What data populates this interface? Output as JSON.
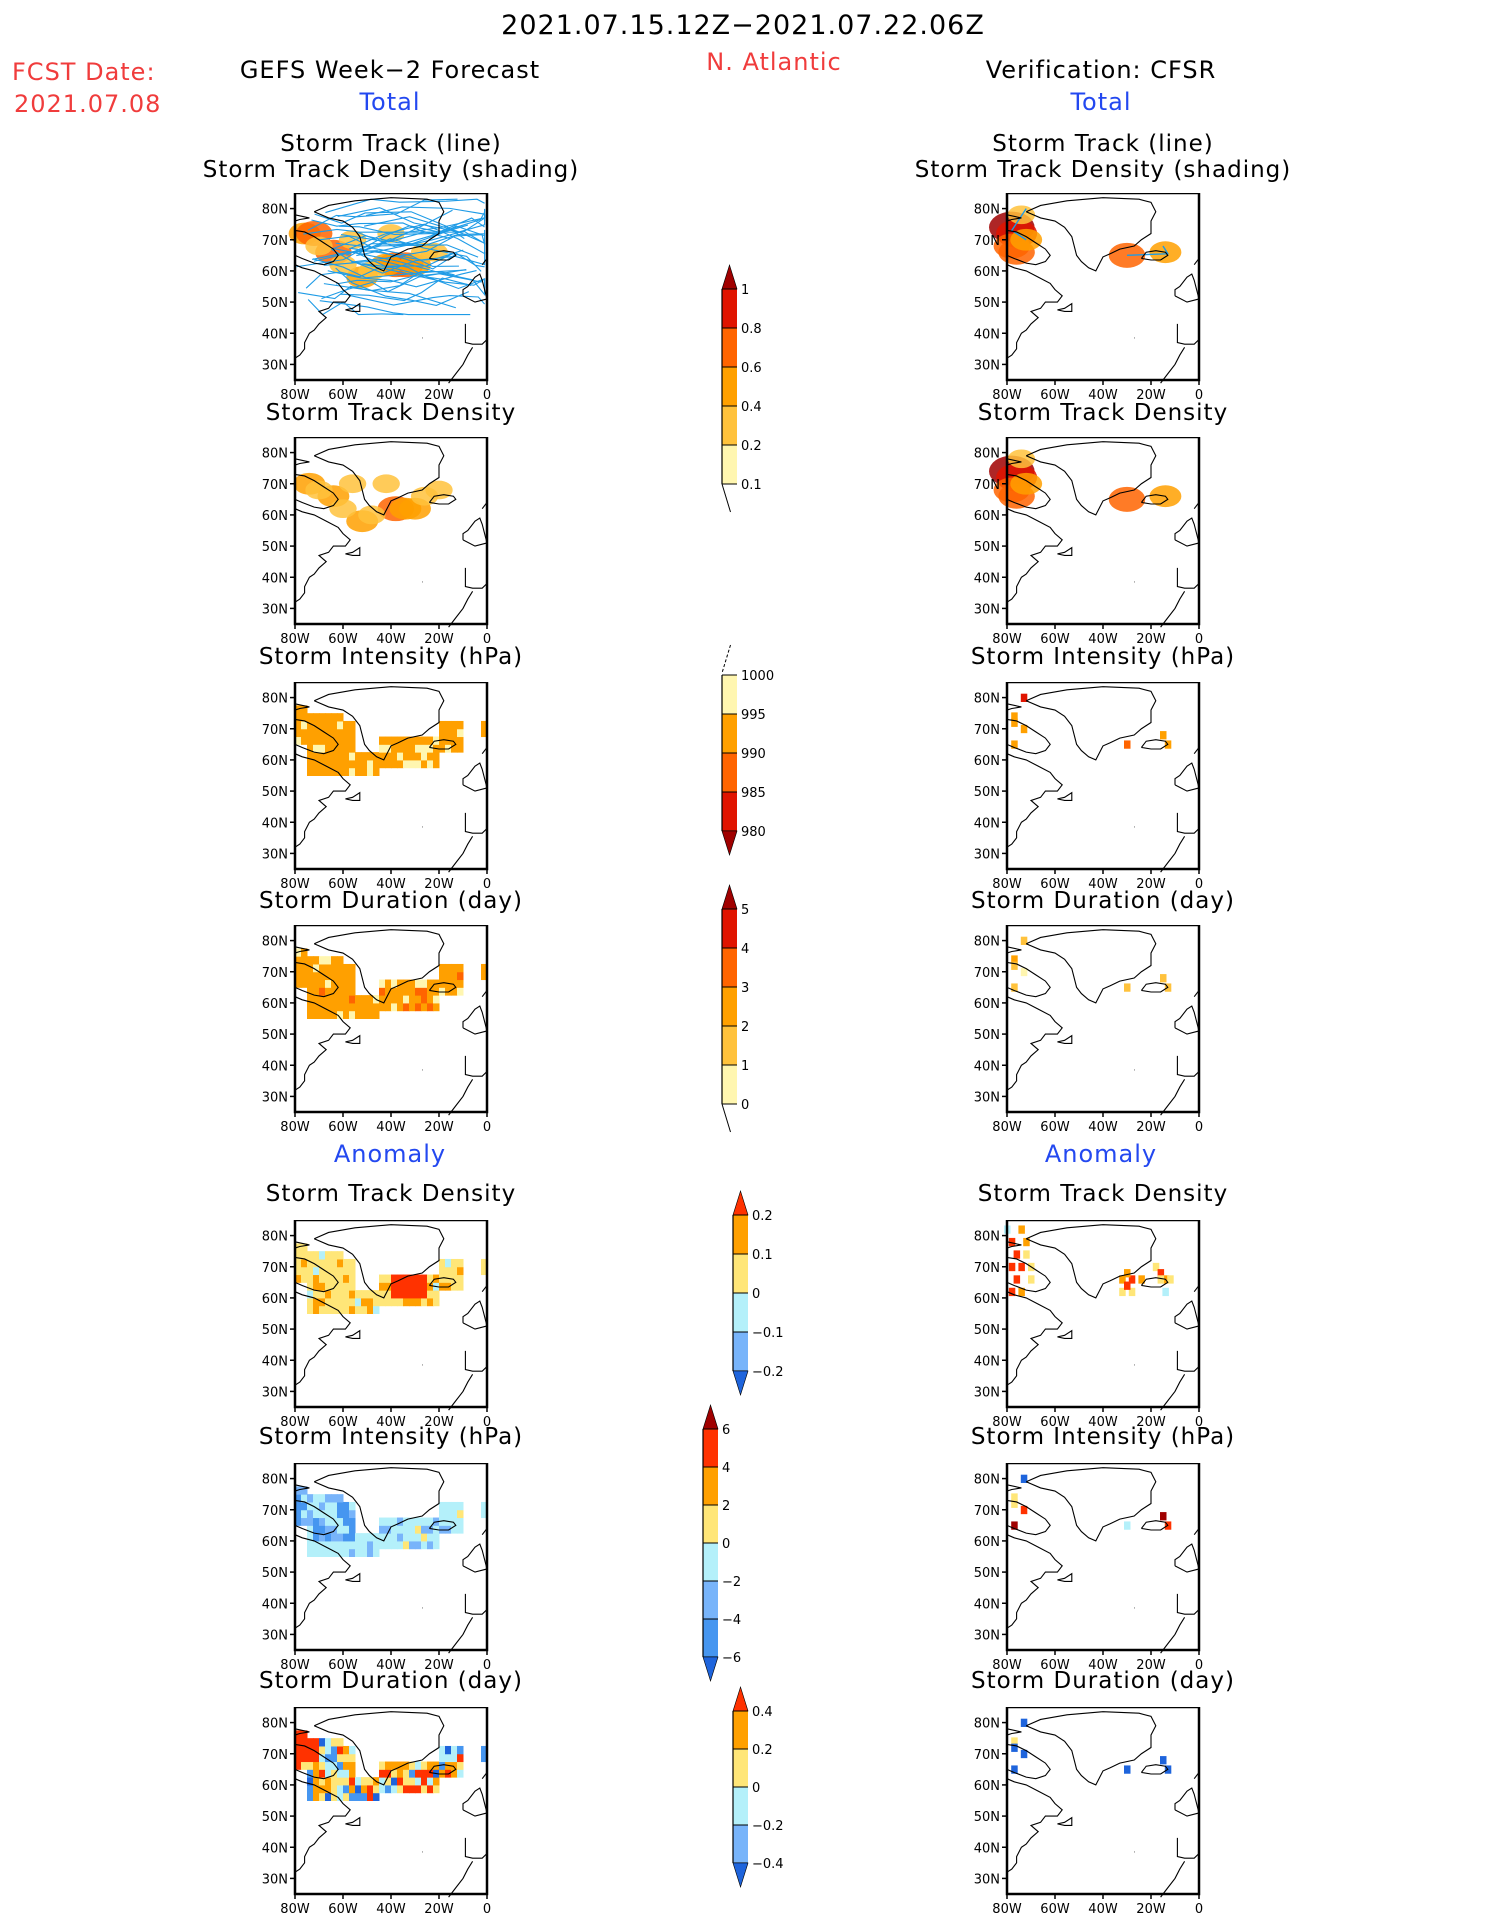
{
  "header": {
    "period": "2021.07.15.12Z−2021.07.22.06Z",
    "region": "N. Atlantic",
    "fcst_label": "FCST Date:",
    "fcst_date": "2021.07.08",
    "left_title": "GEFS Week−2 Forecast",
    "right_title": "Verification: CFSR",
    "total_label": "Total",
    "anomaly_label": "Anomaly"
  },
  "colors": {
    "seq": [
      "#fff6b0",
      "#ffc23c",
      "#ffa000",
      "#ff6400",
      "#e01400",
      "#a00000"
    ],
    "div": [
      "#1e64dc",
      "#4696f0",
      "#78b4fa",
      "#b4f0fa",
      "#ffe678",
      "#ffa000",
      "#ff3200",
      "#a00000"
    ],
    "track": "#1e9be6",
    "title_red": "#f03c3c",
    "title_blue": "#2348f0"
  },
  "axes": {
    "lat_ticks": [
      "80N",
      "70N",
      "60N",
      "50N",
      "40N",
      "30N"
    ],
    "lon_ticks": [
      "80W",
      "60W",
      "40W",
      "20W",
      "0"
    ],
    "lat_range": [
      25,
      85
    ],
    "lon_range": [
      -80,
      0
    ]
  },
  "chart_data": [
    {
      "type": "heatmap",
      "panel": "forecast-total-track",
      "title_lines": [
        "Storm Track (line)",
        "Storm Track Density (shading)"
      ],
      "scale": "density",
      "cells": [
        [
          -76,
          72,
          2
        ],
        [
          -72,
          72,
          3
        ],
        [
          -64,
          66,
          3
        ],
        [
          -38,
          62,
          3
        ],
        [
          -34,
          62,
          3
        ],
        [
          -30,
          62,
          2
        ],
        [
          -42,
          62,
          2
        ],
        [
          -52,
          58,
          2
        ],
        [
          -70,
          68,
          1
        ],
        [
          -60,
          62,
          1
        ],
        [
          -48,
          60,
          1
        ],
        [
          -26,
          66,
          1
        ],
        [
          -22,
          66,
          1
        ],
        [
          -56,
          70,
          1
        ],
        [
          -40,
          72,
          1
        ]
      ],
      "tracks": true
    },
    {
      "type": "heatmap",
      "panel": "verification-total-track",
      "title_lines": [
        "Storm Track (line)",
        "Storm Track Density (shading)"
      ],
      "scale": "density",
      "cells": [
        [
          -78,
          74,
          5
        ],
        [
          -76,
          72,
          4
        ],
        [
          -78,
          68,
          3
        ],
        [
          -76,
          66,
          3
        ],
        [
          -74,
          78,
          1
        ],
        [
          -72,
          70,
          2
        ],
        [
          -30,
          65,
          3
        ],
        [
          -14,
          66,
          2
        ]
      ],
      "tracks": false
    },
    {
      "type": "heatmap",
      "panel": "forecast-track-density",
      "title_lines": [
        "Storm Track Density"
      ],
      "scale": "density",
      "cells": [
        [
          -74,
          70,
          2
        ],
        [
          -64,
          66,
          2
        ],
        [
          -38,
          62,
          3
        ],
        [
          -34,
          62,
          2
        ],
        [
          -30,
          62,
          2
        ],
        [
          -52,
          58,
          2
        ],
        [
          -70,
          68,
          1
        ],
        [
          -60,
          62,
          1
        ],
        [
          -48,
          60,
          1
        ],
        [
          -26,
          66,
          1
        ],
        [
          -20,
          68,
          1
        ],
        [
          -56,
          70,
          1
        ],
        [
          -42,
          70,
          1
        ]
      ]
    },
    {
      "type": "heatmap",
      "panel": "verification-track-density",
      "title_lines": [
        "Storm Track Density"
      ],
      "scale": "density",
      "cells": [
        [
          -78,
          74,
          5
        ],
        [
          -76,
          72,
          4
        ],
        [
          -78,
          68,
          3
        ],
        [
          -76,
          66,
          3
        ],
        [
          -74,
          78,
          1
        ],
        [
          -72,
          70,
          2
        ],
        [
          -30,
          65,
          3
        ],
        [
          -14,
          66,
          2
        ]
      ]
    },
    {
      "type": "heatmap",
      "panel": "forecast-intensity",
      "title_lines": [
        "Storm Intensity (hPa)"
      ],
      "scale": "intensity",
      "cells": "forecast_mask_intensity"
    },
    {
      "type": "heatmap",
      "panel": "verification-intensity",
      "title_lines": [
        "Storm Intensity (hPa)"
      ],
      "scale": "intensity",
      "cells": [
        [
          -73,
          80,
          3
        ],
        [
          -77,
          74,
          1
        ],
        [
          -77,
          72,
          1
        ],
        [
          -73,
          70,
          1
        ],
        [
          -77,
          65,
          1
        ],
        [
          -30,
          65,
          2
        ],
        [
          -15,
          68,
          1
        ],
        [
          -13,
          65,
          1
        ]
      ]
    },
    {
      "type": "heatmap",
      "panel": "forecast-duration",
      "title_lines": [
        "Storm Duration (day)"
      ],
      "scale": "duration",
      "cells": "forecast_mask_duration"
    },
    {
      "type": "heatmap",
      "panel": "verification-duration",
      "title_lines": [
        "Storm Duration (day)"
      ],
      "scale": "duration",
      "cells": [
        [
          -73,
          80,
          1
        ],
        [
          -77,
          74,
          2
        ],
        [
          -77,
          72,
          1
        ],
        [
          -73,
          70,
          0
        ],
        [
          -77,
          65,
          1
        ],
        [
          -30,
          65,
          1
        ],
        [
          -15,
          68,
          1
        ],
        [
          -13,
          65,
          1
        ]
      ]
    },
    {
      "type": "heatmap",
      "panel": "forecast-anom-density",
      "title_lines": [
        "Storm Track Density"
      ],
      "scale": "anom_density",
      "cells": "forecast_mask_anom_density"
    },
    {
      "type": "heatmap",
      "panel": "verification-anom-density",
      "title_lines": [
        "Storm Track Density"
      ],
      "scale": "anom_density",
      "cells": [
        [
          -78,
          78,
          6
        ],
        [
          -76,
          74,
          6
        ],
        [
          -78,
          70,
          6
        ],
        [
          -74,
          70,
          6
        ],
        [
          -76,
          66,
          6
        ],
        [
          -78,
          62,
          6
        ],
        [
          -74,
          82,
          5
        ],
        [
          -72,
          78,
          5
        ],
        [
          -72,
          74,
          4
        ],
        [
          -70,
          70,
          4
        ],
        [
          -70,
          66,
          4
        ],
        [
          -74,
          62,
          5
        ],
        [
          -32,
          66,
          5
        ],
        [
          -28,
          66,
          6
        ],
        [
          -32,
          62,
          4
        ],
        [
          -28,
          62,
          4
        ],
        [
          -24,
          66,
          5
        ],
        [
          -30,
          68,
          5
        ],
        [
          -30,
          64,
          6
        ],
        [
          -18,
          70,
          4
        ],
        [
          -16,
          68,
          6
        ],
        [
          -14,
          66,
          5
        ],
        [
          -12,
          66,
          4
        ],
        [
          -16,
          66,
          4
        ],
        [
          -14,
          62,
          3
        ],
        [
          -80,
          82,
          3
        ]
      ]
    },
    {
      "type": "heatmap",
      "panel": "forecast-anom-intensity",
      "title_lines": [
        "Storm Intensity (hPa)"
      ],
      "scale": "anom_intensity",
      "cells": "forecast_mask_anom_intensity"
    },
    {
      "type": "heatmap",
      "panel": "verification-anom-intensity",
      "title_lines": [
        "Storm Intensity (hPa)"
      ],
      "scale": "anom_intensity",
      "cells": [
        [
          -73,
          80,
          0
        ],
        [
          -77,
          74,
          4
        ],
        [
          -77,
          72,
          4
        ],
        [
          -73,
          70,
          6
        ],
        [
          -77,
          65,
          7
        ],
        [
          -30,
          65,
          3
        ],
        [
          -15,
          68,
          7
        ],
        [
          -13,
          65,
          6
        ]
      ]
    },
    {
      "type": "heatmap",
      "panel": "forecast-anom-duration",
      "title_lines": [
        "Storm Duration (day)"
      ],
      "scale": "anom_duration",
      "cells": "forecast_mask_anom_duration"
    },
    {
      "type": "heatmap",
      "panel": "verification-anom-duration",
      "title_lines": [
        "Storm Duration (day)"
      ],
      "scale": "anom_duration",
      "cells": [
        [
          -73,
          80,
          0
        ],
        [
          -77,
          74,
          4
        ],
        [
          -77,
          72,
          0
        ],
        [
          -73,
          70,
          0
        ],
        [
          -77,
          65,
          0
        ],
        [
          -30,
          65,
          0
        ],
        [
          -15,
          68,
          0
        ],
        [
          -13,
          65,
          0
        ]
      ]
    }
  ],
  "colorbars": [
    {
      "name": "density",
      "labels": [
        "1",
        "0.8",
        "0.6",
        "0.4",
        "0.2",
        "0.1"
      ]
    },
    {
      "name": "intensity",
      "labels": [
        "1000",
        "995",
        "990",
        "985",
        "980"
      ]
    },
    {
      "name": "duration",
      "labels": [
        "5",
        "4",
        "3",
        "2",
        "1",
        "0"
      ]
    },
    {
      "name": "anom_density",
      "labels": [
        "0.2",
        "0.1",
        "0",
        "−0.1",
        "−0.2"
      ]
    },
    {
      "name": "anom_intensity",
      "labels": [
        "6",
        "4",
        "2",
        "0",
        "−2",
        "−4",
        "−6"
      ]
    },
    {
      "name": "anom_duration",
      "labels": [
        "0.4",
        "0.2",
        "0",
        "−0.2",
        "−0.4"
      ]
    }
  ]
}
